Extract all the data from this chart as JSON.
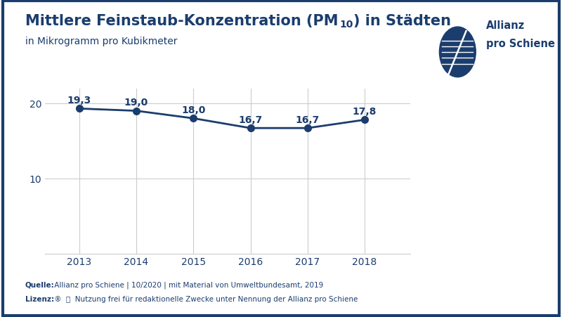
{
  "years": [
    2013,
    2014,
    2015,
    2016,
    2017,
    2018
  ],
  "values": [
    19.3,
    19.0,
    18.0,
    16.7,
    16.7,
    17.8
  ],
  "subtitle": "in Mikrogramm pro Kubikmeter",
  "line_color": "#1b3d6e",
  "marker_color": "#1b3d6e",
  "grid_color": "#cccccc",
  "background_color": "#ffffff",
  "border_color": "#1b3d6e",
  "text_color": "#1b3d6e",
  "ylim": [
    0,
    22
  ],
  "yticks": [
    10,
    20
  ],
  "source_bold": "Quelle:",
  "source_rest": " Allianz pro Schiene | 10/2020 | mit Material von Umweltbundesamt, 2019",
  "license_text": "Lizenz:         Nutzung frei für redaktionelle Zwecke unter Nennung der Allianz pro Schiene",
  "title_fontsize": 15,
  "subtitle_fontsize": 10,
  "label_fontsize": 10,
  "tick_fontsize": 10,
  "source_fontsize": 7.5
}
